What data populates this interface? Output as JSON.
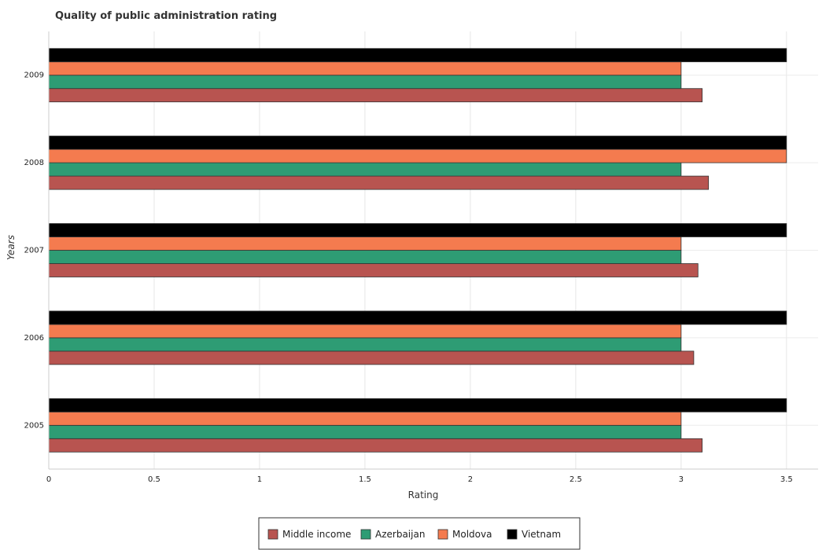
{
  "chart_data": {
    "type": "bar",
    "orientation": "horizontal",
    "title": "Quality of public administration rating",
    "xlabel": "Rating",
    "ylabel": "Years",
    "categories": [
      "2005",
      "2006",
      "2007",
      "2008",
      "2009"
    ],
    "series": [
      {
        "name": "Middle income",
        "color": "#b85450",
        "values": [
          3.1,
          3.06,
          3.08,
          3.13,
          3.1
        ]
      },
      {
        "name": "Azerbaijan",
        "color": "#2e9c74",
        "values": [
          3.0,
          3.0,
          3.0,
          3.0,
          3.0
        ]
      },
      {
        "name": "Moldova",
        "color": "#f47b4f",
        "values": [
          3.0,
          3.0,
          3.0,
          3.5,
          3.0
        ]
      },
      {
        "name": "Vietnam",
        "color": "#000000",
        "values": [
          3.5,
          3.5,
          3.5,
          3.5,
          3.5
        ]
      }
    ],
    "xlim": [
      0,
      3.65
    ],
    "xticks": [
      "0",
      "0.5",
      "1",
      "1.5",
      "2",
      "2.5",
      "3",
      "3.5"
    ],
    "grid": true,
    "legend": "bottom-center"
  }
}
